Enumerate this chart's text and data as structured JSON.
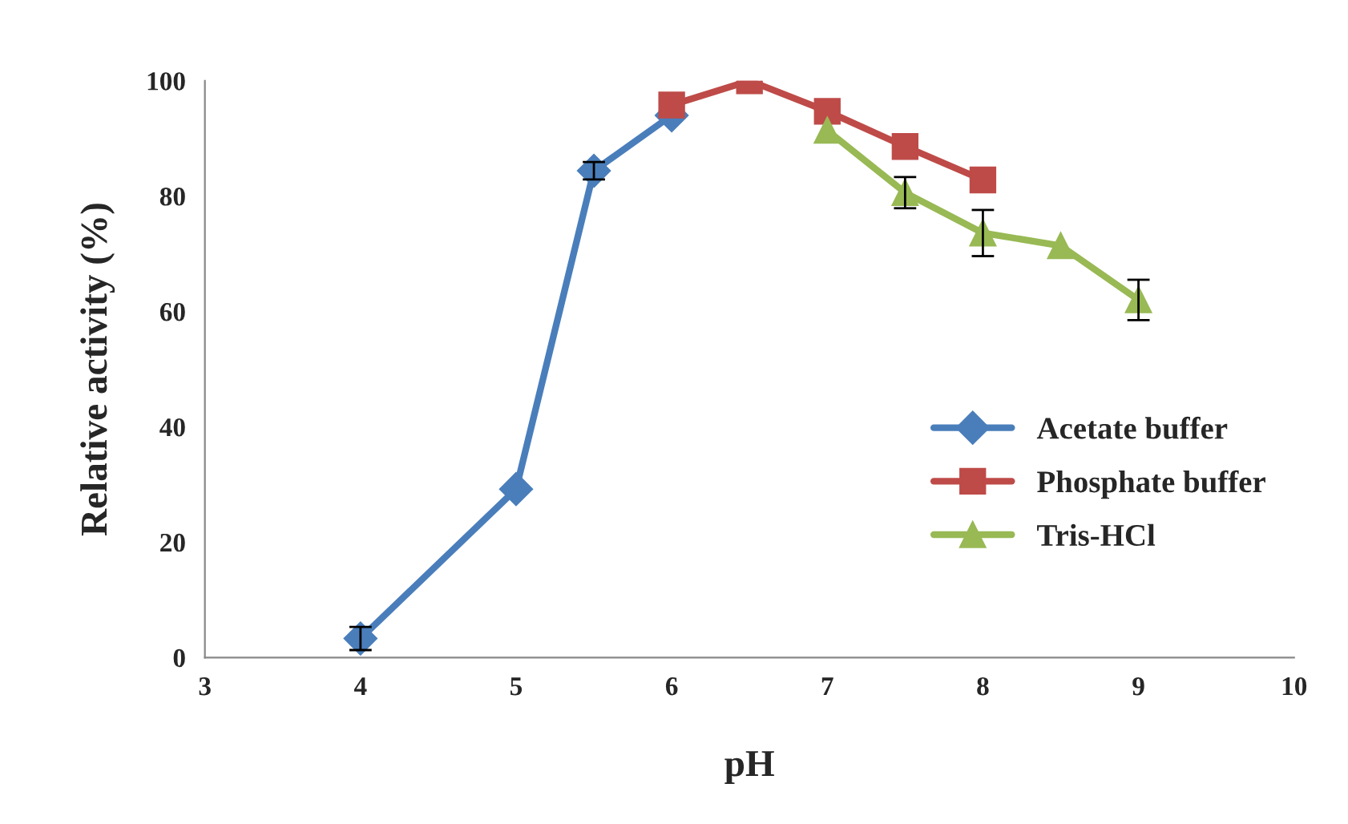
{
  "chart_data": {
    "type": "line",
    "xlabel": "pH",
    "ylabel": "Relative activity (%)",
    "xlim": [
      3,
      10
    ],
    "xticks": [
      3,
      4,
      5,
      6,
      7,
      8,
      9,
      10
    ],
    "ylim": [
      0,
      100
    ],
    "yticks": [
      0,
      20,
      40,
      60,
      80,
      100
    ],
    "grid": false,
    "legend": "right",
    "series": [
      {
        "name": "Acetate buffer",
        "color": "#4a7ebb",
        "marker": "diamond",
        "x": [
          4,
          5,
          5.5,
          6
        ],
        "values": [
          3.3,
          29.2,
          84.4,
          94
        ],
        "errors": [
          2,
          null,
          1.5,
          null
        ]
      },
      {
        "name": "Phosphate buffer",
        "color": "#be4b48",
        "marker": "square",
        "x": [
          6,
          6.5,
          7,
          7.5,
          8
        ],
        "values": [
          95.8,
          100,
          94.7,
          88.6,
          82.8
        ]
      },
      {
        "name": "Tris-HCl",
        "color": "#98b954",
        "marker": "triangle",
        "x": [
          7,
          7.5,
          8,
          8.5,
          9
        ],
        "values": [
          91.4,
          80.6,
          73.6,
          71.4,
          62
        ],
        "errors": [
          null,
          2.7,
          4,
          null,
          3.5
        ]
      }
    ]
  }
}
